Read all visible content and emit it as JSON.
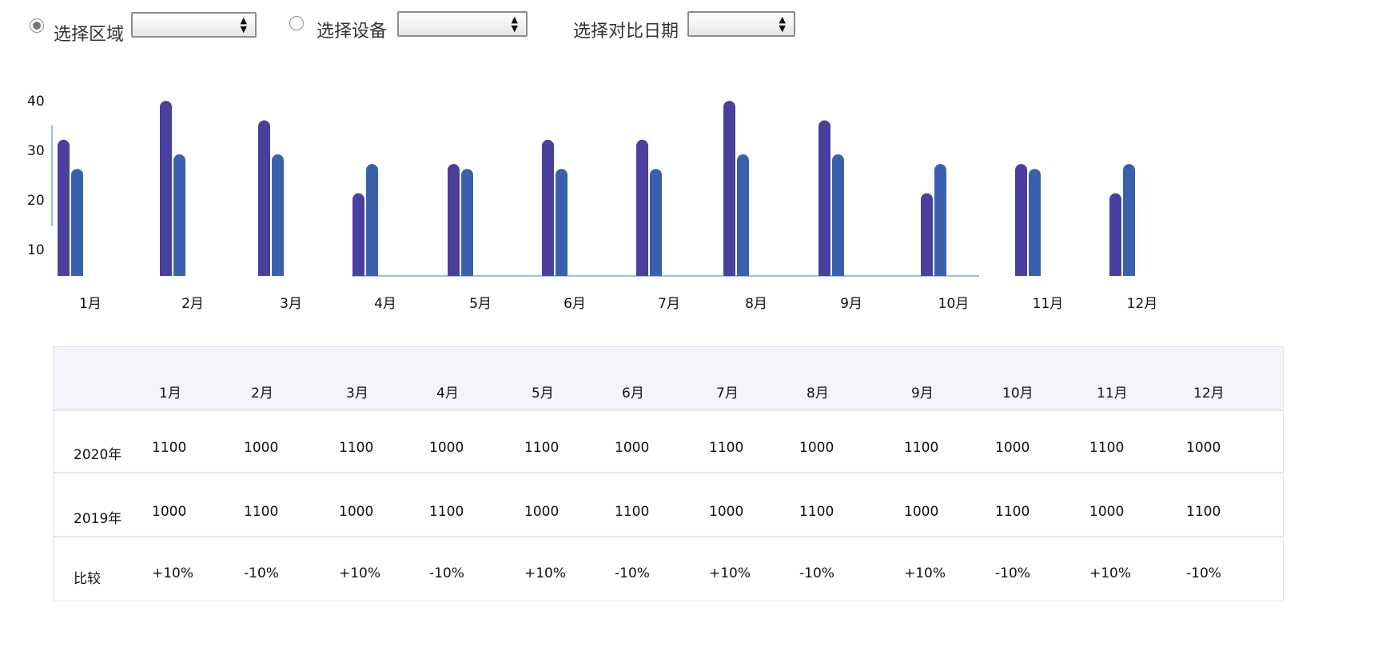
{
  "filters": {
    "region": {
      "label": "选择区域",
      "selected": true,
      "value": ""
    },
    "device": {
      "label": "选择设备",
      "selected": false,
      "value": ""
    },
    "compare_date": {
      "label": "选择对比日期",
      "value": ""
    }
  },
  "chart_data": {
    "type": "bar",
    "categories": [
      "1月",
      "2月",
      "3月",
      "4月",
      "5月",
      "6月",
      "7月",
      "8月",
      "9月",
      "10月",
      "11月",
      "12月"
    ],
    "series": [
      {
        "values": [
          28,
          36,
          32,
          17,
          23,
          28,
          28,
          36,
          32,
          17,
          23,
          17
        ]
      },
      {
        "values": [
          22,
          25,
          25,
          23,
          22,
          22,
          22,
          25,
          25,
          23,
          22,
          23
        ]
      }
    ],
    "yticks": [
      10,
      20,
      30,
      40
    ],
    "ylim": [
      0,
      40
    ],
    "grid": false,
    "legend": "none",
    "colors": [
      "#4b3f9d",
      "#3a5fad",
      "#9bbcdc"
    ]
  },
  "table": {
    "months": [
      "1月",
      "2月",
      "3月",
      "4月",
      "5月",
      "6月",
      "7月",
      "8月",
      "9月",
      "10月",
      "11月",
      "12月"
    ],
    "rows": [
      {
        "label": "2020年",
        "values": [
          "1100",
          "1000",
          "1100",
          "1000",
          "1100",
          "1000",
          "1100",
          "1000",
          "1100",
          "1000",
          "1100",
          "1000"
        ]
      },
      {
        "label": "2019年",
        "values": [
          "1000",
          "1100",
          "1000",
          "1100",
          "1000",
          "1100",
          "1000",
          "1100",
          "1000",
          "1100",
          "1000",
          "1100"
        ]
      },
      {
        "label": "比较",
        "values": [
          "+10%",
          "-10%",
          "+10%",
          "-10%",
          "+10%",
          "-10%",
          "+10%",
          "-10%",
          "+10%",
          "-10%",
          "+10%",
          "-10%"
        ]
      }
    ]
  }
}
